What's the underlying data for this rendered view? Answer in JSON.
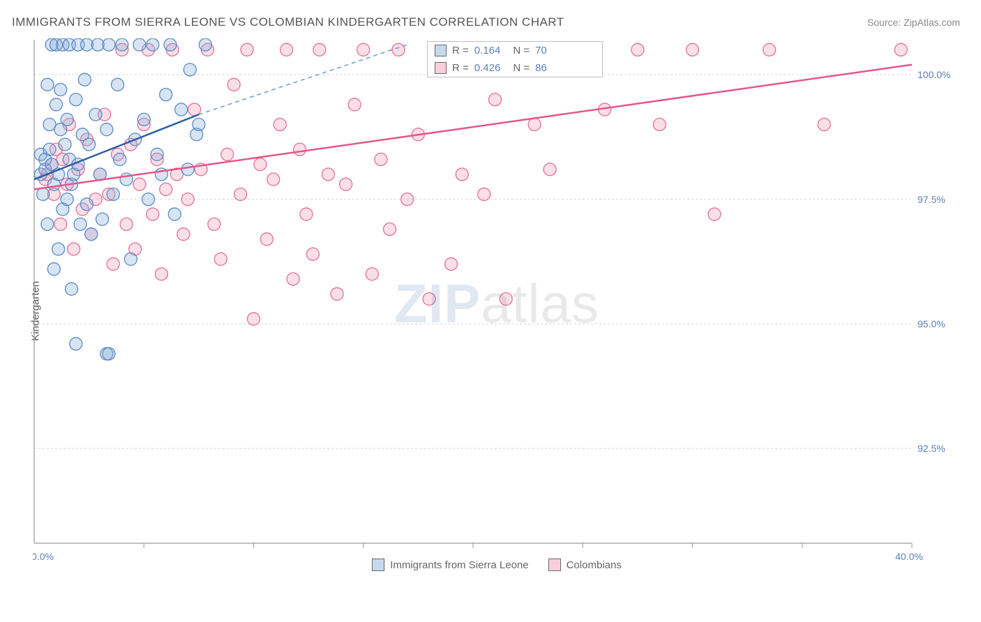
{
  "title": "IMMIGRANTS FROM SIERRA LEONE VS COLOMBIAN KINDERGARTEN CORRELATION CHART",
  "source_label": "Source: ZipAtlas.com",
  "y_axis_label": "Kindergarten",
  "watermark_zip": "ZIP",
  "watermark_rest": "atlas",
  "chart": {
    "type": "scatter",
    "xlim": [
      0,
      40
    ],
    "ylim": [
      90.6,
      100.7
    ],
    "y_ticks": [
      92.5,
      95.0,
      97.5,
      100.0
    ],
    "y_tick_labels": [
      "92.5%",
      "95.0%",
      "97.5%",
      "100.0%"
    ],
    "x_ticks_minor": [
      5,
      10,
      15,
      20,
      25,
      30,
      35,
      40
    ],
    "x_tick_labels": {
      "0": "0.0%",
      "40": "40.0%"
    },
    "marker_radius": 9,
    "grid_color": "#d5d5d5",
    "background_color": "#ffffff",
    "series_blue": {
      "color_fill": "rgba(130,170,215,0.32)",
      "color_stroke": "#5a8ac8",
      "trend_color": "#2c5fa5",
      "R": "0.164",
      "N": "70",
      "legend": "Immigrants from Sierra Leone",
      "trend": {
        "x0": 0,
        "y0": 97.9,
        "x1_solid": 7.5,
        "y1_solid": 99.2,
        "x1_dash": 17,
        "y1_dash": 100.6
      },
      "points": [
        [
          0.3,
          98.0
        ],
        [
          0.3,
          98.4
        ],
        [
          0.4,
          97.6
        ],
        [
          0.5,
          98.1
        ],
        [
          0.5,
          98.3
        ],
        [
          0.6,
          99.8
        ],
        [
          0.6,
          97.0
        ],
        [
          0.7,
          98.5
        ],
        [
          0.7,
          99.0
        ],
        [
          0.8,
          100.6
        ],
        [
          0.8,
          98.2
        ],
        [
          0.9,
          96.1
        ],
        [
          0.9,
          97.8
        ],
        [
          1.0,
          99.4
        ],
        [
          1.0,
          100.6
        ],
        [
          1.1,
          98.0
        ],
        [
          1.1,
          96.5
        ],
        [
          1.2,
          99.7
        ],
        [
          1.2,
          98.9
        ],
        [
          1.3,
          100.6
        ],
        [
          1.3,
          97.3
        ],
        [
          1.4,
          98.6
        ],
        [
          1.5,
          99.1
        ],
        [
          1.5,
          97.5
        ],
        [
          1.6,
          100.6
        ],
        [
          1.6,
          98.3
        ],
        [
          1.7,
          97.8
        ],
        [
          1.7,
          95.7
        ],
        [
          1.8,
          98.0
        ],
        [
          1.9,
          99.5
        ],
        [
          1.9,
          94.6
        ],
        [
          2.0,
          100.6
        ],
        [
          2.0,
          98.2
        ],
        [
          2.1,
          97.0
        ],
        [
          2.2,
          98.8
        ],
        [
          2.3,
          99.9
        ],
        [
          2.4,
          100.6
        ],
        [
          2.4,
          97.4
        ],
        [
          2.5,
          98.6
        ],
        [
          2.6,
          96.8
        ],
        [
          2.8,
          99.2
        ],
        [
          2.9,
          100.6
        ],
        [
          3.0,
          98.0
        ],
        [
          3.1,
          97.1
        ],
        [
          3.3,
          98.9
        ],
        [
          3.3,
          94.4
        ],
        [
          3.4,
          100.6
        ],
        [
          3.4,
          94.4
        ],
        [
          3.6,
          97.6
        ],
        [
          3.8,
          99.8
        ],
        [
          3.9,
          98.3
        ],
        [
          4.0,
          100.6
        ],
        [
          4.2,
          97.9
        ],
        [
          4.4,
          96.3
        ],
        [
          4.6,
          98.7
        ],
        [
          4.8,
          100.6
        ],
        [
          5.0,
          99.1
        ],
        [
          5.2,
          97.5
        ],
        [
          5.4,
          100.6
        ],
        [
          5.6,
          98.4
        ],
        [
          5.8,
          98.0
        ],
        [
          6.0,
          99.6
        ],
        [
          6.2,
          100.6
        ],
        [
          6.4,
          97.2
        ],
        [
          6.7,
          99.3
        ],
        [
          7.0,
          98.1
        ],
        [
          7.1,
          100.1
        ],
        [
          7.4,
          98.8
        ],
        [
          7.5,
          99.0
        ],
        [
          7.8,
          100.6
        ]
      ]
    },
    "series_pink": {
      "color_fill": "rgba(240,150,175,0.30)",
      "color_stroke": "#e66f95",
      "trend_color": "#e6558a",
      "R": "0.426",
      "N": "86",
      "legend": "Colombians",
      "trend": {
        "x0": 0,
        "y0": 97.7,
        "x1": 40,
        "y1": 100.2
      },
      "points": [
        [
          0.5,
          97.9
        ],
        [
          0.6,
          98.0
        ],
        [
          0.8,
          98.2
        ],
        [
          0.9,
          97.6
        ],
        [
          1.0,
          98.5
        ],
        [
          1.2,
          97.0
        ],
        [
          1.3,
          98.3
        ],
        [
          1.5,
          97.8
        ],
        [
          1.6,
          99.0
        ],
        [
          1.8,
          96.5
        ],
        [
          2.0,
          98.1
        ],
        [
          2.2,
          97.3
        ],
        [
          2.4,
          98.7
        ],
        [
          2.6,
          96.8
        ],
        [
          2.8,
          97.5
        ],
        [
          3.0,
          98.0
        ],
        [
          3.2,
          99.2
        ],
        [
          3.4,
          97.6
        ],
        [
          3.6,
          96.2
        ],
        [
          3.8,
          98.4
        ],
        [
          4.0,
          100.5
        ],
        [
          4.2,
          97.0
        ],
        [
          4.4,
          98.6
        ],
        [
          4.6,
          96.5
        ],
        [
          4.8,
          97.8
        ],
        [
          5.0,
          99.0
        ],
        [
          5.2,
          100.5
        ],
        [
          5.4,
          97.2
        ],
        [
          5.6,
          98.3
        ],
        [
          5.8,
          96.0
        ],
        [
          6.0,
          97.7
        ],
        [
          6.3,
          100.5
        ],
        [
          6.5,
          98.0
        ],
        [
          6.8,
          96.8
        ],
        [
          7.0,
          97.5
        ],
        [
          7.3,
          99.3
        ],
        [
          7.6,
          98.1
        ],
        [
          7.9,
          100.5
        ],
        [
          8.2,
          97.0
        ],
        [
          8.5,
          96.3
        ],
        [
          8.8,
          98.4
        ],
        [
          9.1,
          99.8
        ],
        [
          9.4,
          97.6
        ],
        [
          9.7,
          100.5
        ],
        [
          10.0,
          95.1
        ],
        [
          10.3,
          98.2
        ],
        [
          10.6,
          96.7
        ],
        [
          10.9,
          97.9
        ],
        [
          11.2,
          99.0
        ],
        [
          11.5,
          100.5
        ],
        [
          11.8,
          95.9
        ],
        [
          12.1,
          98.5
        ],
        [
          12.4,
          97.2
        ],
        [
          12.7,
          96.4
        ],
        [
          13.0,
          100.5
        ],
        [
          13.4,
          98.0
        ],
        [
          13.8,
          95.6
        ],
        [
          14.2,
          97.8
        ],
        [
          14.6,
          99.4
        ],
        [
          15.0,
          100.5
        ],
        [
          15.4,
          96.0
        ],
        [
          15.8,
          98.3
        ],
        [
          16.2,
          96.9
        ],
        [
          16.6,
          100.5
        ],
        [
          17.0,
          97.5
        ],
        [
          17.5,
          98.8
        ],
        [
          18.0,
          95.5
        ],
        [
          18.5,
          100.5
        ],
        [
          19.0,
          96.2
        ],
        [
          19.5,
          98.0
        ],
        [
          20.0,
          100.5
        ],
        [
          20.5,
          97.6
        ],
        [
          21.0,
          99.5
        ],
        [
          21.5,
          95.5
        ],
        [
          22.0,
          100.5
        ],
        [
          22.8,
          99.0
        ],
        [
          23.5,
          98.1
        ],
        [
          24.5,
          100.5
        ],
        [
          26.0,
          99.3
        ],
        [
          27.5,
          100.5
        ],
        [
          28.5,
          99.0
        ],
        [
          30.0,
          100.5
        ],
        [
          31.0,
          97.2
        ],
        [
          33.5,
          100.5
        ],
        [
          36.0,
          99.0
        ],
        [
          39.5,
          100.5
        ]
      ]
    }
  },
  "stat_labels": {
    "R": "R =",
    "N": "N ="
  }
}
